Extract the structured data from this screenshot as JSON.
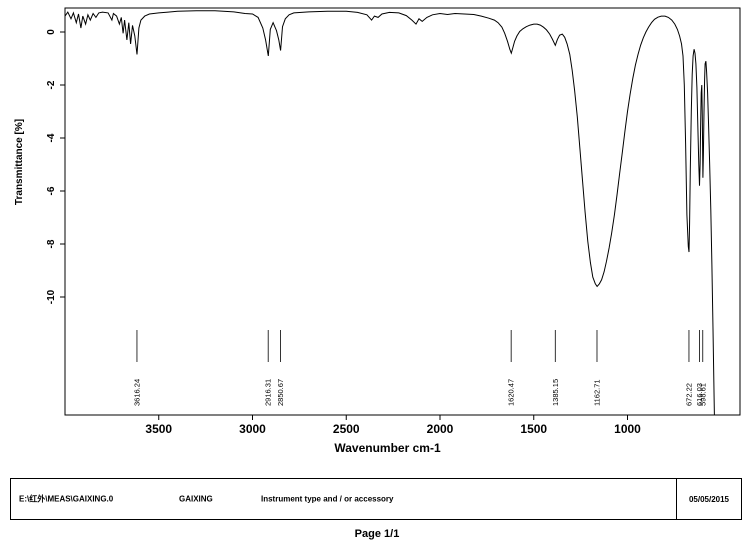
{
  "chart_data": {
    "type": "line",
    "xlabel": "Wavenumber cm-1",
    "ylabel": "Transmittance [%]",
    "x_range": [
      4000,
      400
    ],
    "x_ticks": [
      3500,
      3000,
      2500,
      2000,
      1500,
      1000
    ],
    "y_ticks": [
      0,
      -2,
      -4,
      -6,
      -8,
      -10
    ],
    "grid": "off",
    "line_color": "#000000",
    "peaks": [
      "3616.24",
      "2916.31",
      "2850.67",
      "1620.47",
      "1385.15",
      "1162.71",
      "672.22",
      "616.03",
      "598.61"
    ],
    "spectrum": [
      [
        4000,
        0.6
      ],
      [
        3985,
        0.75
      ],
      [
        3968,
        0.5
      ],
      [
        3955,
        0.72
      ],
      [
        3940,
        0.35
      ],
      [
        3928,
        0.68
      ],
      [
        3915,
        0.15
      ],
      [
        3905,
        0.6
      ],
      [
        3890,
        0.3
      ],
      [
        3878,
        0.65
      ],
      [
        3865,
        0.45
      ],
      [
        3850,
        0.7
      ],
      [
        3835,
        0.55
      ],
      [
        3820,
        0.72
      ],
      [
        3800,
        0.75
      ],
      [
        3770,
        0.72
      ],
      [
        3750,
        0.45
      ],
      [
        3742,
        0.7
      ],
      [
        3725,
        0.6
      ],
      [
        3710,
        0.3
      ],
      [
        3700,
        0.55
      ],
      [
        3690,
        -0.05
      ],
      [
        3682,
        0.45
      ],
      [
        3670,
        -0.3
      ],
      [
        3660,
        0.35
      ],
      [
        3650,
        -0.45
      ],
      [
        3640,
        0.25
      ],
      [
        3628,
        -0.15
      ],
      [
        3616,
        -0.85
      ],
      [
        3606,
        0.15
      ],
      [
        3595,
        0.45
      ],
      [
        3575,
        0.6
      ],
      [
        3550,
        0.68
      ],
      [
        3500,
        0.72
      ],
      [
        3450,
        0.75
      ],
      [
        3400,
        0.78
      ],
      [
        3300,
        0.8
      ],
      [
        3200,
        0.8
      ],
      [
        3100,
        0.76
      ],
      [
        3040,
        0.7
      ],
      [
        3000,
        0.68
      ],
      [
        2970,
        0.55
      ],
      [
        2945,
        0.15
      ],
      [
        2930,
        -0.3
      ],
      [
        2916,
        -0.9
      ],
      [
        2905,
        0.1
      ],
      [
        2890,
        0.35
      ],
      [
        2872,
        0.05
      ],
      [
        2860,
        -0.3
      ],
      [
        2850,
        -0.7
      ],
      [
        2840,
        0.2
      ],
      [
        2825,
        0.5
      ],
      [
        2805,
        0.65
      ],
      [
        2780,
        0.72
      ],
      [
        2700,
        0.76
      ],
      [
        2600,
        0.78
      ],
      [
        2500,
        0.78
      ],
      [
        2440,
        0.74
      ],
      [
        2390,
        0.65
      ],
      [
        2365,
        0.45
      ],
      [
        2350,
        0.6
      ],
      [
        2330,
        0.55
      ],
      [
        2310,
        0.68
      ],
      [
        2270,
        0.74
      ],
      [
        2220,
        0.72
      ],
      [
        2180,
        0.62
      ],
      [
        2150,
        0.45
      ],
      [
        2128,
        0.3
      ],
      [
        2112,
        0.5
      ],
      [
        2095,
        0.4
      ],
      [
        2070,
        0.55
      ],
      [
        2040,
        0.65
      ],
      [
        2000,
        0.7
      ],
      [
        1960,
        0.66
      ],
      [
        1920,
        0.7
      ],
      [
        1870,
        0.68
      ],
      [
        1820,
        0.66
      ],
      [
        1780,
        0.6
      ],
      [
        1740,
        0.52
      ],
      [
        1710,
        0.45
      ],
      [
        1690,
        0.35
      ],
      [
        1670,
        0.18
      ],
      [
        1655,
        -0.05
      ],
      [
        1640,
        -0.35
      ],
      [
        1628,
        -0.65
      ],
      [
        1620,
        -0.8
      ],
      [
        1612,
        -0.6
      ],
      [
        1602,
        -0.35
      ],
      [
        1590,
        -0.15
      ],
      [
        1575,
        0.02
      ],
      [
        1558,
        0.12
      ],
      [
        1540,
        0.2
      ],
      [
        1520,
        0.26
      ],
      [
        1500,
        0.3
      ],
      [
        1482,
        0.3
      ],
      [
        1465,
        0.26
      ],
      [
        1448,
        0.18
      ],
      [
        1432,
        0.08
      ],
      [
        1415,
        -0.08
      ],
      [
        1400,
        -0.28
      ],
      [
        1385,
        -0.5
      ],
      [
        1374,
        -0.28
      ],
      [
        1362,
        -0.12
      ],
      [
        1348,
        -0.08
      ],
      [
        1335,
        -0.2
      ],
      [
        1322,
        -0.45
      ],
      [
        1308,
        -0.85
      ],
      [
        1295,
        -1.45
      ],
      [
        1282,
        -2.2
      ],
      [
        1268,
        -3.2
      ],
      [
        1254,
        -4.4
      ],
      [
        1240,
        -5.6
      ],
      [
        1226,
        -6.8
      ],
      [
        1212,
        -7.9
      ],
      [
        1198,
        -8.7
      ],
      [
        1185,
        -9.25
      ],
      [
        1172,
        -9.5
      ],
      [
        1162,
        -9.6
      ],
      [
        1150,
        -9.5
      ],
      [
        1138,
        -9.35
      ],
      [
        1125,
        -9.05
      ],
      [
        1112,
        -8.65
      ],
      [
        1098,
        -8.15
      ],
      [
        1085,
        -7.6
      ],
      [
        1070,
        -6.9
      ],
      [
        1056,
        -6.15
      ],
      [
        1042,
        -5.35
      ],
      [
        1028,
        -4.55
      ],
      [
        1014,
        -3.75
      ],
      [
        1000,
        -3.0
      ],
      [
        986,
        -2.35
      ],
      [
        972,
        -1.75
      ],
      [
        958,
        -1.25
      ],
      [
        944,
        -0.85
      ],
      [
        930,
        -0.5
      ],
      [
        916,
        -0.22
      ],
      [
        902,
        0.0
      ],
      [
        888,
        0.18
      ],
      [
        872,
        0.35
      ],
      [
        856,
        0.48
      ],
      [
        838,
        0.56
      ],
      [
        820,
        0.6
      ],
      [
        800,
        0.6
      ],
      [
        782,
        0.55
      ],
      [
        764,
        0.45
      ],
      [
        748,
        0.3
      ],
      [
        734,
        0.1
      ],
      [
        722,
        -0.15
      ],
      [
        712,
        -0.45
      ],
      [
        704,
        -0.9
      ],
      [
        697,
        -2.0
      ],
      [
        690,
        -4.2
      ],
      [
        683,
        -6.9
      ],
      [
        676,
        -8.1
      ],
      [
        672,
        -8.3
      ],
      [
        669,
        -7.2
      ],
      [
        665,
        -5.2
      ],
      [
        660,
        -3.0
      ],
      [
        655,
        -1.6
      ],
      [
        650,
        -0.9
      ],
      [
        645,
        -0.65
      ],
      [
        640,
        -0.8
      ],
      [
        635,
        -1.2
      ],
      [
        630,
        -2.1
      ],
      [
        625,
        -3.5
      ],
      [
        620,
        -5.0
      ],
      [
        616,
        -5.8
      ],
      [
        613,
        -5.0
      ],
      [
        610,
        -3.6
      ],
      [
        607,
        -2.3
      ],
      [
        604,
        -2.0
      ],
      [
        601,
        -3.2
      ],
      [
        598,
        -5.5
      ],
      [
        595,
        -4.6
      ],
      [
        592,
        -3.0
      ],
      [
        589,
        -1.8
      ],
      [
        586,
        -1.2
      ],
      [
        582,
        -1.1
      ],
      [
        578,
        -1.5
      ],
      [
        573,
        -2.3
      ],
      [
        568,
        -3.4
      ],
      [
        562,
        -4.9
      ],
      [
        556,
        -6.7
      ],
      [
        550,
        -8.8
      ],
      [
        544,
        -11.2
      ],
      [
        538,
        -13.8
      ],
      [
        532,
        -16.5
      ]
    ]
  },
  "footer": {
    "file_path": "E:\\红外\\MEAS\\GAIXING.0",
    "sample_name": "GAIXING",
    "instrument_label": "Instrument type and / or accessory",
    "date": "05/05/2015"
  },
  "page_label": "Page 1/1"
}
